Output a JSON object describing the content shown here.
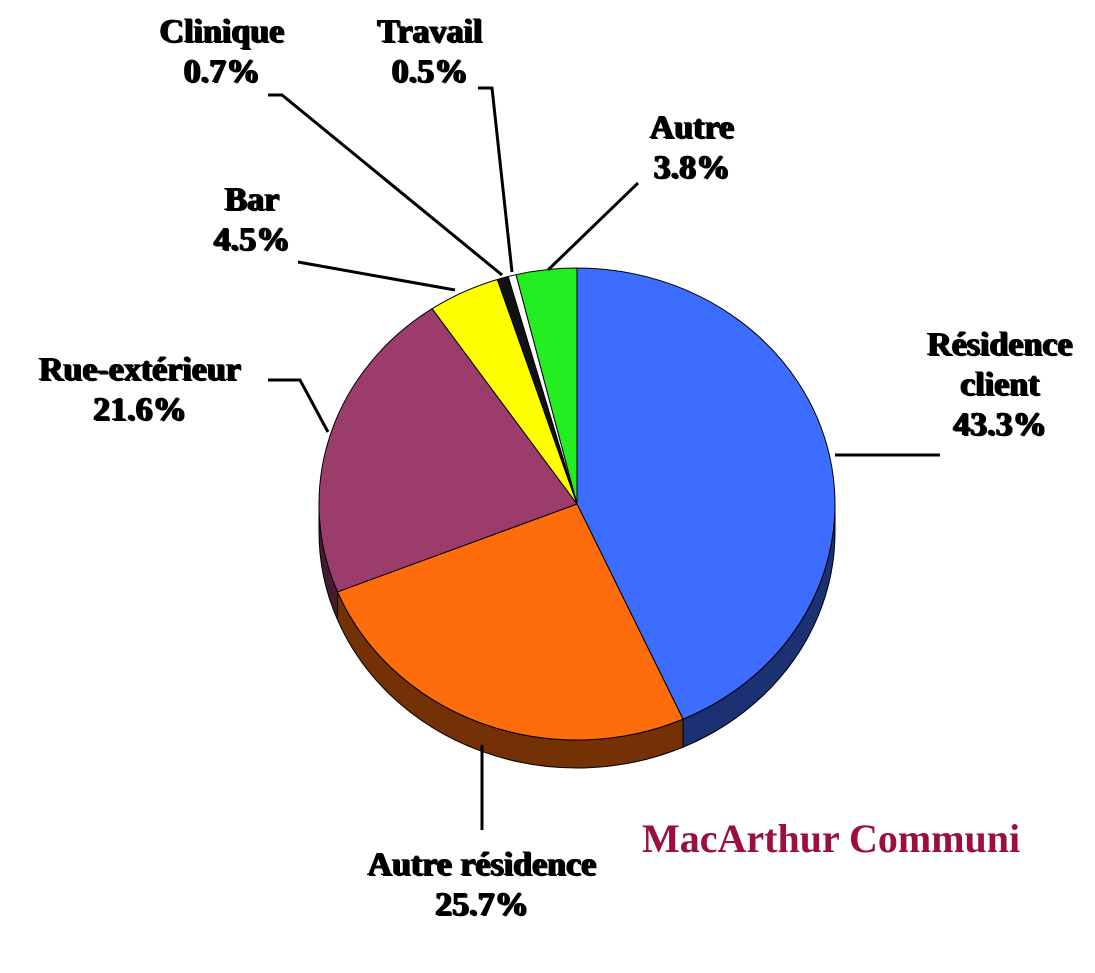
{
  "chart_data": {
    "type": "pie",
    "categories": [
      "Résidence client",
      "Autre résidence",
      "Rue-extérieur",
      "Bar",
      "Clinique",
      "Travail",
      "Autre"
    ],
    "values": [
      43.3,
      25.7,
      21.6,
      4.5,
      0.7,
      0.5,
      3.8
    ],
    "value_labels": [
      "43.3%",
      "25.7%",
      "21.6%",
      "4.5%",
      "0.7%",
      "0.5%",
      "3.8%"
    ],
    "colors": [
      "#3d6dff",
      "#ff6c0c",
      "#9c3c6a",
      "#ffff00",
      "#111111",
      "#ffffff",
      "#22ee22"
    ],
    "source": "MacArthur Communi"
  }
}
